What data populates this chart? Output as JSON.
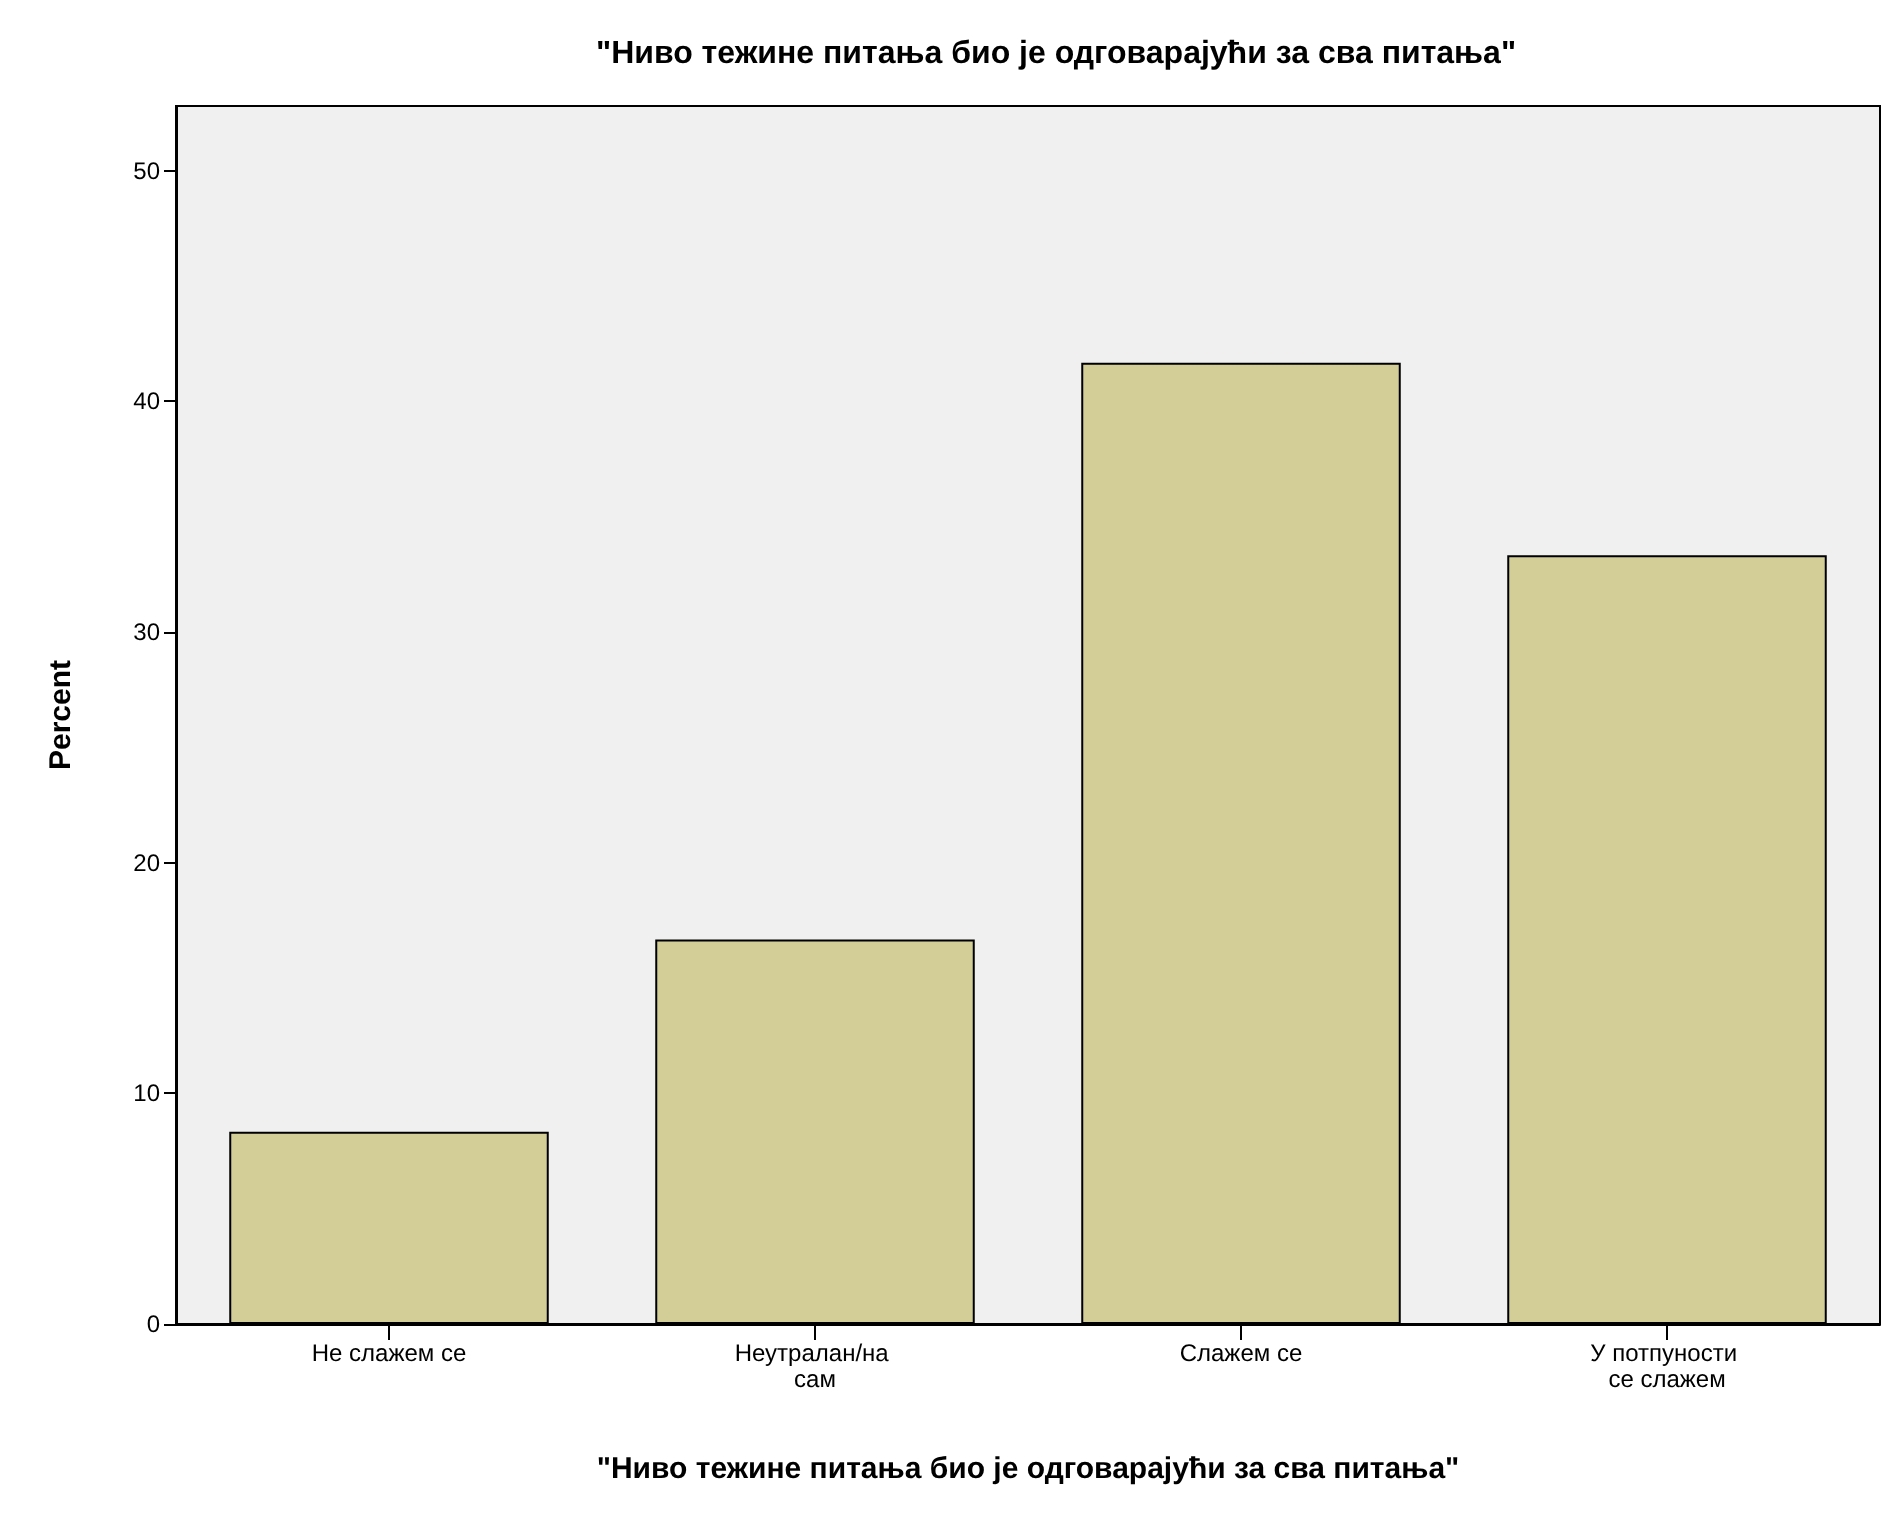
{
  "chart_data": {
    "type": "bar",
    "title": "\"Ниво тежине питања био је одговарајући за сва питања\"",
    "xlabel": "\"Ниво тежине питања био је одговарајући за сва питања\"",
    "ylabel": "Percent",
    "categories": [
      "Не слажем се",
      "Неутралан/на сам",
      "Слажем се",
      "У потпуности се слажем"
    ],
    "values": [
      8.33,
      16.67,
      41.67,
      33.33
    ],
    "color": "#d3ce97",
    "ylim": [
      0,
      52.8
    ],
    "yticks": [
      0,
      10,
      20,
      30,
      40,
      50
    ],
    "grid": false
  }
}
